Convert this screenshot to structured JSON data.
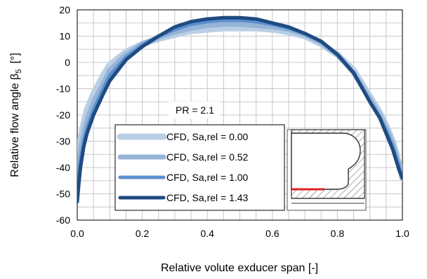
{
  "chart_data": {
    "type": "line",
    "xlabel": "Relative volute exducer span  [-]",
    "ylabel_main": "Relative flow angle  β",
    "ylabel_sub": "5",
    "ylabel_unit": "[°]",
    "xlim": [
      0.0,
      1.0
    ],
    "ylim": [
      -60,
      20
    ],
    "x_ticks": [
      "0.0",
      "0.2",
      "0.4",
      "0.6",
      "0.8",
      "1.0"
    ],
    "y_ticks": [
      "20",
      "10",
      "0",
      "-10",
      "-20",
      "-30",
      "-40",
      "-50",
      "-60"
    ],
    "grid": true,
    "legend_position": "bottom-center",
    "annotation": "PR = 2.1",
    "series": [
      {
        "name": "CFD, Sa,rel = 0.00",
        "color": "#b9cfe6",
        "x": [
          0.0,
          0.005,
          0.01,
          0.02,
          0.03,
          0.05,
          0.08,
          0.1,
          0.15,
          0.2,
          0.25,
          0.3,
          0.35,
          0.4,
          0.45,
          0.5,
          0.55,
          0.6,
          0.65,
          0.7,
          0.75,
          0.8,
          0.85,
          0.9,
          0.93,
          0.95,
          0.97,
          0.98,
          0.99,
          1.0
        ],
        "values": [
          -38,
          -33,
          -29,
          -23,
          -18,
          -12,
          -5,
          -1,
          4,
          7,
          9,
          10.5,
          12,
          12.5,
          13,
          13,
          13,
          12.5,
          11.5,
          10,
          7,
          3,
          -3,
          -13,
          -19,
          -24,
          -30,
          -34,
          -39,
          -44
        ]
      },
      {
        "name": "CFD, Sa,rel = 0.52",
        "color": "#95b4d6",
        "x": [
          0.0,
          0.005,
          0.01,
          0.02,
          0.03,
          0.05,
          0.08,
          0.1,
          0.15,
          0.2,
          0.25,
          0.3,
          0.35,
          0.4,
          0.45,
          0.5,
          0.55,
          0.6,
          0.65,
          0.7,
          0.75,
          0.8,
          0.85,
          0.9,
          0.93,
          0.95,
          0.97,
          0.98,
          0.99,
          1.0
        ],
        "values": [
          -43,
          -38,
          -33,
          -27,
          -22,
          -15,
          -8,
          -3,
          3,
          7,
          9.5,
          11.5,
          13,
          14,
          14.5,
          14.5,
          14,
          13.5,
          12.5,
          10.5,
          7.5,
          3,
          -4,
          -14,
          -20,
          -25,
          -31,
          -35,
          -39,
          -44
        ]
      },
      {
        "name": "CFD, Sa,rel = 1.00",
        "color": "#5b8fd0",
        "x": [
          0.0,
          0.005,
          0.01,
          0.02,
          0.03,
          0.05,
          0.08,
          0.1,
          0.15,
          0.2,
          0.25,
          0.3,
          0.35,
          0.4,
          0.45,
          0.5,
          0.55,
          0.6,
          0.65,
          0.7,
          0.75,
          0.8,
          0.85,
          0.9,
          0.93,
          0.95,
          0.97,
          0.98,
          0.99,
          1.0
        ],
        "values": [
          -48,
          -42,
          -37,
          -30,
          -25,
          -18,
          -10,
          -5,
          2,
          6.5,
          10,
          12.5,
          14.5,
          15.5,
          16,
          16,
          15.5,
          14.5,
          13,
          11,
          8,
          3,
          -4,
          -15,
          -21,
          -26,
          -32,
          -36,
          -40,
          -44
        ]
      },
      {
        "name": "CFD, Sa,rel = 1.43",
        "color": "#1f4b82",
        "x": [
          0.0,
          0.005,
          0.01,
          0.02,
          0.03,
          0.05,
          0.08,
          0.1,
          0.15,
          0.2,
          0.25,
          0.3,
          0.35,
          0.4,
          0.45,
          0.5,
          0.55,
          0.6,
          0.65,
          0.7,
          0.75,
          0.8,
          0.85,
          0.9,
          0.93,
          0.95,
          0.97,
          0.98,
          0.99,
          1.0
        ],
        "values": [
          -53,
          -46,
          -40,
          -32,
          -27,
          -20,
          -12,
          -7,
          1,
          6,
          10,
          13.5,
          15.5,
          16.5,
          17,
          17,
          16.5,
          15,
          13.5,
          11,
          8,
          3,
          -4,
          -15,
          -21,
          -27,
          -33,
          -37,
          -41,
          -44
        ]
      }
    ]
  }
}
